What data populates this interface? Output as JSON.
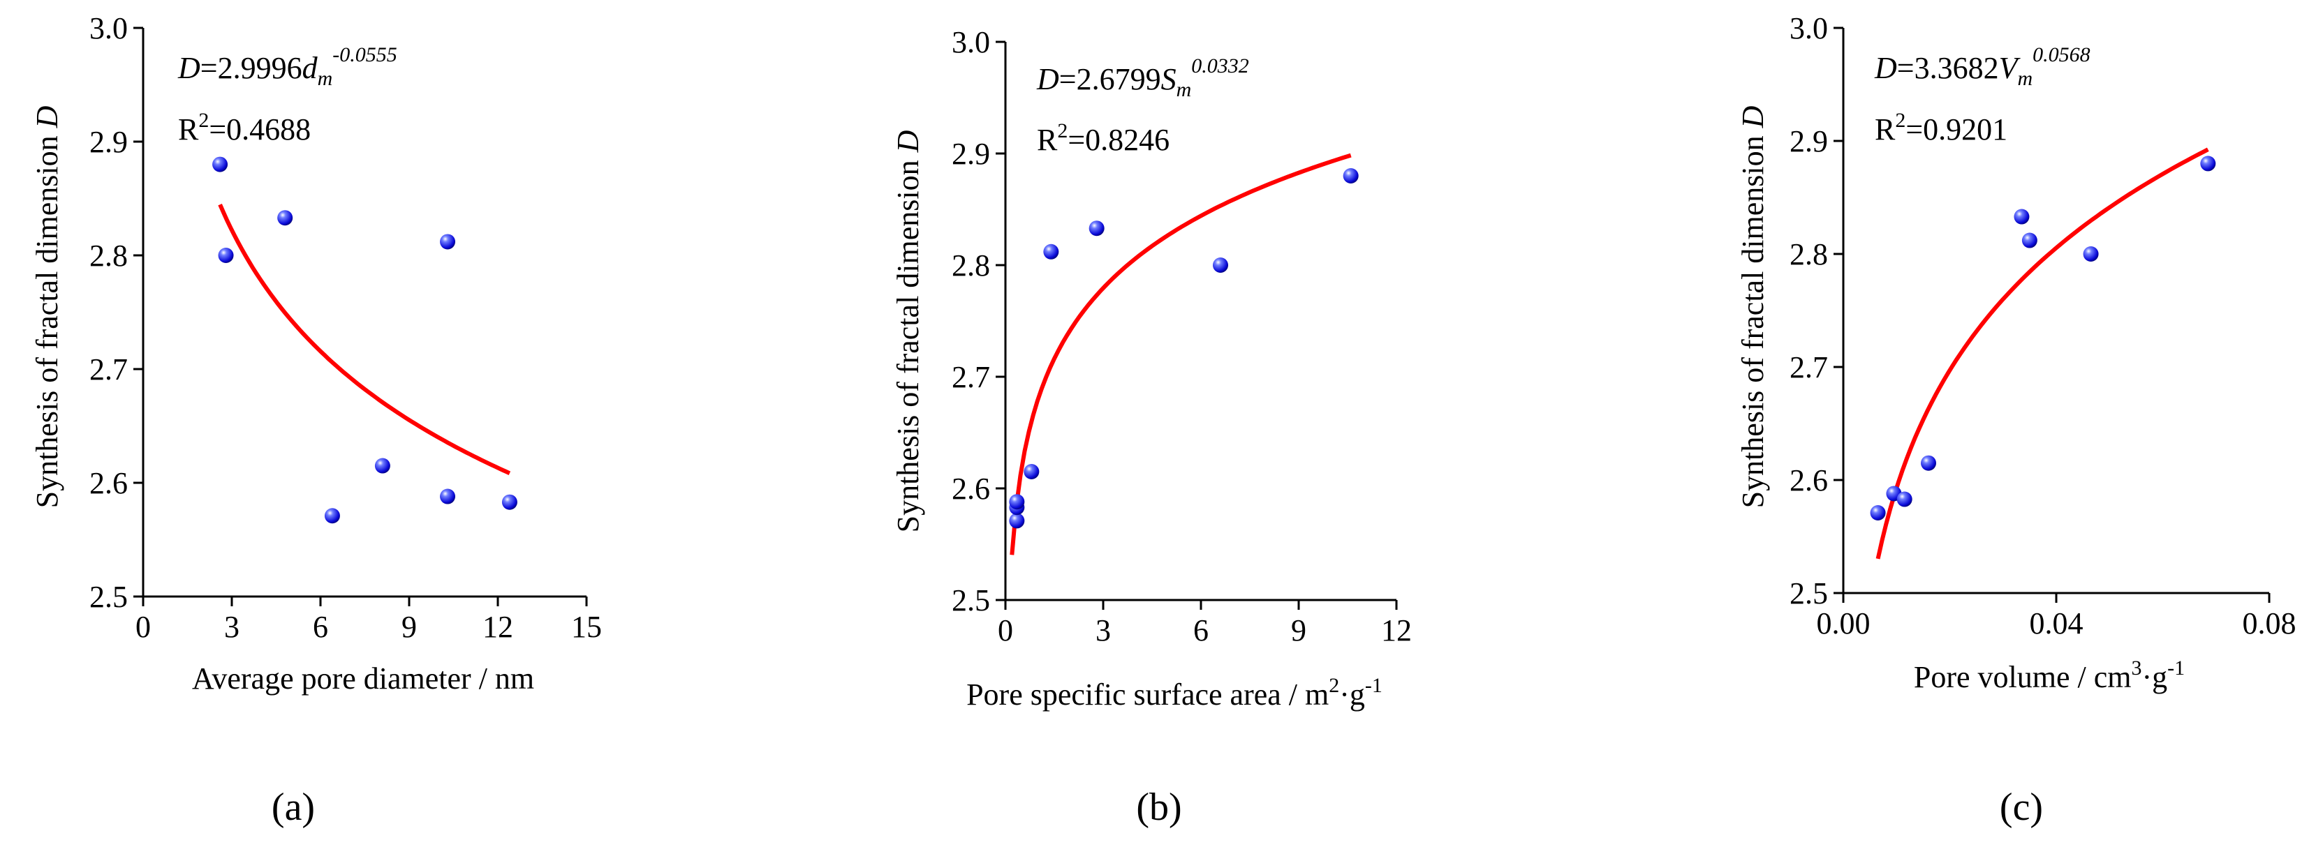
{
  "figure": {
    "panel_labels": [
      "(a)",
      "(b)",
      "(c)"
    ]
  },
  "chart_data": [
    {
      "type": "scatter",
      "panel": "a",
      "xlabel": "Average pore diameter / nm",
      "ylabel_prefix": "Synthesis of fractal dimension",
      "ylabel_var": "D",
      "xlim": [
        0,
        15
      ],
      "ylim": [
        2.5,
        3.0
      ],
      "xticks": [
        0,
        3,
        6,
        9,
        12,
        15
      ],
      "xtick_labels": [
        "0",
        "3",
        "6",
        "9",
        "12",
        "15"
      ],
      "yticks": [
        2.5,
        2.6,
        2.7,
        2.8,
        2.9,
        3.0
      ],
      "ytick_labels": [
        "2.5",
        "2.6",
        "2.7",
        "2.8",
        "2.9",
        "3.0"
      ],
      "points": [
        {
          "x": 2.6,
          "y": 2.88
        },
        {
          "x": 2.8,
          "y": 2.8
        },
        {
          "x": 4.8,
          "y": 2.833
        },
        {
          "x": 6.4,
          "y": 2.571
        },
        {
          "x": 8.1,
          "y": 2.615
        },
        {
          "x": 10.3,
          "y": 2.812
        },
        {
          "x": 10.3,
          "y": 2.588
        },
        {
          "x": 12.4,
          "y": 2.583
        }
      ],
      "fit": {
        "a": 2.9996,
        "b": -0.0555,
        "x_from": 2.6,
        "x_to": 12.4
      },
      "eq": {
        "lhs": "D",
        "eq_coef": "=2.9996",
        "var": "d",
        "sub": "m",
        "exp": "-0.0555"
      },
      "r2": {
        "r": "R",
        "two": "2",
        "value": "=0.4688"
      }
    },
    {
      "type": "scatter",
      "panel": "b",
      "xlabel": "Pore specific surface area / m",
      "xlabel_sup1": "2",
      "xlabel_mid": "·g",
      "xlabel_sup2": "-1",
      "ylabel_prefix": "Synthesis of fractal dimension",
      "ylabel_var": "D",
      "xlim": [
        0,
        12
      ],
      "ylim": [
        2.5,
        3.0
      ],
      "xticks": [
        0,
        3,
        6,
        9,
        12
      ],
      "xtick_labels": [
        "0",
        "3",
        "6",
        "9",
        "12"
      ],
      "yticks": [
        2.5,
        2.6,
        2.7,
        2.8,
        2.9,
        3.0
      ],
      "ytick_labels": [
        "2.5",
        "2.6",
        "2.7",
        "2.8",
        "2.9",
        "3.0"
      ],
      "points": [
        {
          "x": 0.35,
          "y": 2.571
        },
        {
          "x": 0.35,
          "y": 2.583
        },
        {
          "x": 0.35,
          "y": 2.588
        },
        {
          "x": 0.8,
          "y": 2.615
        },
        {
          "x": 1.4,
          "y": 2.812
        },
        {
          "x": 2.8,
          "y": 2.833
        },
        {
          "x": 6.6,
          "y": 2.8
        },
        {
          "x": 10.6,
          "y": 2.88
        }
      ],
      "fit": {
        "a": 2.6799,
        "b": 0.0332,
        "x_from": 0.2,
        "x_to": 10.6
      },
      "eq": {
        "lhs": "D",
        "eq_coef": "=2.6799",
        "var": "S",
        "sub": "m",
        "exp": "0.0332"
      },
      "r2": {
        "r": "R",
        "two": "2",
        "value": "=0.8246"
      }
    },
    {
      "type": "scatter",
      "panel": "c",
      "xlabel": "Pore volume / cm",
      "xlabel_sup1": "3",
      "xlabel_mid": "·g",
      "xlabel_sup2": "-1",
      "ylabel_prefix": "Synthesis of fractal dimension",
      "ylabel_var": "D",
      "xlim": [
        0,
        0.08
      ],
      "ylim": [
        2.5,
        3.0
      ],
      "xticks": [
        0,
        0.04,
        0.08
      ],
      "xtick_labels": [
        "0.00",
        "0.04",
        "0.08"
      ],
      "yticks": [
        2.5,
        2.6,
        2.7,
        2.8,
        2.9,
        3.0
      ],
      "ytick_labels": [
        "2.5",
        "2.6",
        "2.7",
        "2.8",
        "2.9",
        "3.0"
      ],
      "points": [
        {
          "x": 0.0065,
          "y": 2.571
        },
        {
          "x": 0.0095,
          "y": 2.588
        },
        {
          "x": 0.0115,
          "y": 2.583
        },
        {
          "x": 0.016,
          "y": 2.615
        },
        {
          "x": 0.0335,
          "y": 2.833
        },
        {
          "x": 0.035,
          "y": 2.812
        },
        {
          "x": 0.0465,
          "y": 2.8
        },
        {
          "x": 0.0685,
          "y": 2.88
        }
      ],
      "fit": {
        "a": 3.3682,
        "b": 0.0568,
        "x_from": 0.0065,
        "x_to": 0.0685
      },
      "eq": {
        "lhs": "D",
        "eq_coef": "=3.3682",
        "var": "V",
        "sub": "m",
        "exp": "0.0568"
      },
      "r2": {
        "r": "R",
        "two": "2",
        "value": "=0.9201"
      }
    }
  ]
}
